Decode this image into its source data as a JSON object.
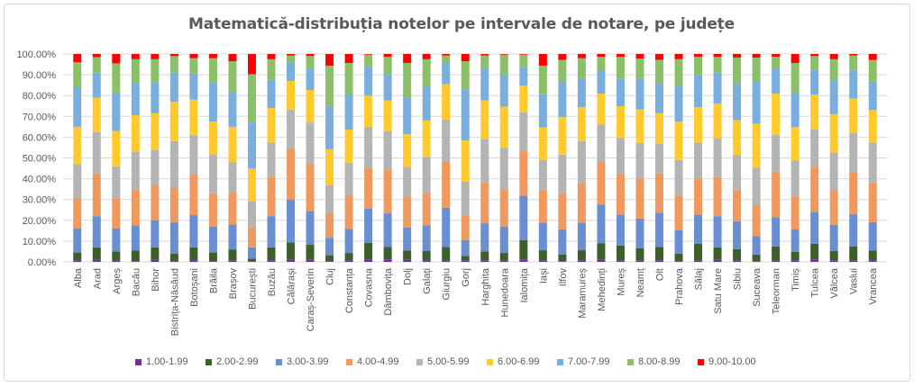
{
  "chart_data": {
    "type": "bar",
    "stacked": "percent",
    "title": "Matematică-distribuția notelor pe intervale de notare, pe județe",
    "xlabel": "",
    "ylabel": "",
    "ylim": [
      0,
      100
    ],
    "y_ticks": [
      "0.00%",
      "10.00%",
      "20.00%",
      "30.00%",
      "40.00%",
      "50.00%",
      "60.00%",
      "70.00%",
      "80.00%",
      "90.00%",
      "100.00%"
    ],
    "grid": true,
    "legend_position": "bottom",
    "categories": [
      "Alba",
      "Arad",
      "Argeș",
      "Bacău",
      "Bihor",
      "Bistrița-Năsăud",
      "Botoșani",
      "Brăila",
      "Brașov",
      "București",
      "Buzău",
      "Călărași",
      "Caraș-Severin",
      "Cluj",
      "Constanța",
      "Covasna",
      "Dâmbovița",
      "Dolj",
      "Galați",
      "Giurgiu",
      "Gorj",
      "Harghita",
      "Hunedoara",
      "Ialomița",
      "Iași",
      "Ilfov",
      "Maramureș",
      "Mehedinți",
      "Mureș",
      "Neamț",
      "Olt",
      "Prahova",
      "Sălaj",
      "Satu Mare",
      "Sibiu",
      "Suceava",
      "Teleorman",
      "Timiș",
      "Tulcea",
      "Vâlcea",
      "Vaslui",
      "Vrancea"
    ],
    "series": [
      {
        "name": "1.00-1.99",
        "color": "#7030a0",
        "values": [
          0.5,
          1,
          0.5,
          0.3,
          1,
          0.3,
          0.5,
          0.3,
          0.8,
          0.3,
          0.5,
          1,
          1,
          0.3,
          0.5,
          1.2,
          1.2,
          1,
          0.5,
          0.5,
          0.5,
          0.5,
          0.5,
          1.2,
          0.5,
          0.3,
          0.5,
          1,
          0.5,
          0.8,
          0.5,
          0.3,
          0.8,
          1,
          0.5,
          0.3,
          0.8,
          0.5,
          1.2,
          0.5,
          0.8,
          0.5
        ]
      },
      {
        "name": "2.00-2.99",
        "color": "#3e5f2a",
        "values": [
          4,
          6,
          4.5,
          5.2,
          6,
          3.7,
          6.5,
          4.2,
          5.2,
          1.2,
          6.5,
          8.4,
          7.2,
          2.9,
          3.8,
          7.9,
          6,
          4.5,
          4.7,
          6.7,
          2.4,
          4.6,
          3.8,
          9.3,
          5.1,
          3.3,
          5.1,
          8,
          7.4,
          5.7,
          6.7,
          3.7,
          7.9,
          6,
          5.6,
          3.2,
          6.6,
          4.3,
          7.5,
          4.7,
          6.7,
          5
        ]
      },
      {
        "name": "3.00-3.99",
        "color": "#6a8fd0",
        "values": [
          11.5,
          15,
          11,
          12,
          13,
          15,
          15.5,
          12.5,
          12,
          5.5,
          15,
          20.6,
          16.2,
          8.4,
          11.5,
          16.5,
          16.3,
          11.1,
          12.3,
          18.8,
          7.6,
          13.3,
          12.6,
          21.3,
          13.2,
          12,
          13.2,
          18.5,
          14.8,
          14.3,
          16.5,
          11.2,
          14,
          15,
          13.4,
          8.9,
          14.1,
          10.8,
          15.4,
          12.6,
          15.6,
          13.6
        ]
      },
      {
        "name": "4.00-4.99",
        "color": "#f0995e",
        "values": [
          14.5,
          20.5,
          14.5,
          17,
          17,
          16.5,
          19.5,
          16,
          15.5,
          9.6,
          19,
          24.5,
          22.6,
          11.9,
          16.2,
          19.4,
          21,
          14.9,
          15.7,
          22.3,
          11.9,
          19.8,
          18.1,
          21.4,
          15.6,
          17.3,
          19.2,
          20.5,
          19.5,
          19.2,
          18.8,
          16.6,
          17.3,
          18.8,
          15.2,
          14.8,
          21.9,
          15.9,
          21.6,
          16.6,
          19.8,
          18.8
        ]
      },
      {
        "name": "5.00-5.99",
        "color": "#b4b4b4",
        "values": [
          16.5,
          20,
          15.5,
          18.5,
          17,
          22.5,
          19,
          18.5,
          14.5,
          12.4,
          16.4,
          18.8,
          20,
          13.3,
          15.7,
          20,
          18.4,
          14.3,
          17.4,
          20.1,
          16.2,
          21,
          19.9,
          18.8,
          14.7,
          18.7,
          20.1,
          18.2,
          17.5,
          17.2,
          14.5,
          17.2,
          17.4,
          18.7,
          16.6,
          18.2,
          17.7,
          17.2,
          18.3,
          18.2,
          19.2,
          19.5
        ]
      },
      {
        "name": "6.00-6.99",
        "color": "#ffca2c",
        "values": [
          18,
          16.5,
          17,
          17.5,
          17.5,
          19,
          17,
          16,
          17,
          16,
          16.6,
          13.7,
          15.7,
          17.4,
          15.9,
          15,
          14.8,
          15.6,
          17.4,
          17.1,
          19.8,
          18.4,
          19.8,
          12.8,
          15.6,
          18.1,
          16.3,
          14.7,
          15.2,
          16.1,
          14.5,
          18.5,
          17,
          16.7,
          16.9,
          21.1,
          19.8,
          16.2,
          16.5,
          18.5,
          16.4,
          15.6
        ]
      },
      {
        "name": "7.00-7.99",
        "color": "#7aaedc",
        "values": [
          19,
          12,
          18,
          15.5,
          15,
          14,
          12.5,
          19,
          16.5,
          22,
          13.5,
          9,
          10.3,
          20.8,
          16.9,
          14,
          12.6,
          17.8,
          16.2,
          10.2,
          24.6,
          15.6,
          15.3,
          8.8,
          15.9,
          16.7,
          14,
          11.1,
          13.3,
          14.6,
          14.4,
          17.4,
          15.2,
          14.8,
          17.3,
          20.5,
          12,
          16.5,
          12,
          16.3,
          14,
          13.7
        ]
      },
      {
        "name": "8.00-8.99",
        "color": "#8cc068",
        "values": [
          12,
          7.5,
          14.5,
          11.5,
          11,
          8,
          7.5,
          11.5,
          15,
          23.3,
          10,
          3.3,
          6,
          19.4,
          15.2,
          5.7,
          8.3,
          16.5,
          13.3,
          3.6,
          13.5,
          6.1,
          9.7,
          6.1,
          13.8,
          10.8,
          9.6,
          6.7,
          10.4,
          9.9,
          11.3,
          12.6,
          9,
          7.6,
          12.8,
          11.3,
          5.8,
          14.3,
          6.5,
          10.1,
          6.8,
          10.4
        ]
      },
      {
        "name": "9.00-10.00",
        "color": "#ff0000",
        "values": [
          4,
          1.5,
          4.5,
          2.5,
          2.5,
          1,
          2,
          2,
          3.5,
          9.7,
          2.5,
          0.7,
          1,
          5.6,
          4.3,
          0.3,
          1.4,
          4.3,
          2.5,
          0.7,
          3.5,
          0.7,
          0.3,
          0.3,
          5.6,
          2.8,
          2,
          1.3,
          1.4,
          2.2,
          2.8,
          2.5,
          1.4,
          1.4,
          1.7,
          1.7,
          1.3,
          4.3,
          1,
          2.5,
          0.7,
          2.9
        ]
      }
    ]
  }
}
